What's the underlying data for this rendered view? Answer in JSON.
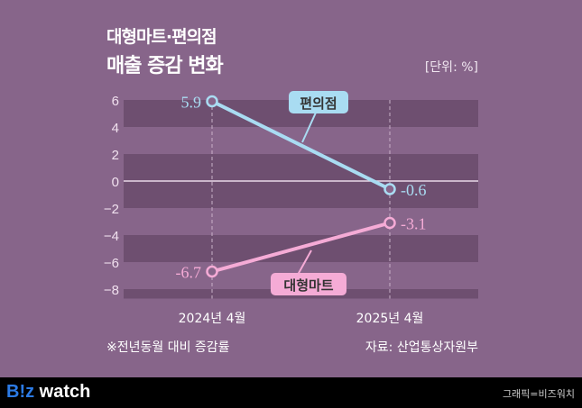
{
  "title_line1": "대형마트·편의점",
  "title_line2": "매출 증감 변화",
  "unit": "[단위: %]",
  "note": "※전년동월 대비 증감률",
  "source": "자료: 산업통상자원부",
  "footer": {
    "logo_brand": "B!z",
    "logo_word": "watch",
    "credit": "그래픽=비즈워치"
  },
  "colors": {
    "편의점": "#a9dcf2",
    "대형마트": "#f5abd6",
    "background": "#87658a",
    "band": "#6e4f70"
  },
  "chart_data": {
    "type": "line",
    "categories": [
      "2024년 4월",
      "2025년 4월"
    ],
    "series": [
      {
        "name": "편의점",
        "values": [
          5.9,
          -0.6
        ],
        "labels": [
          "5.9",
          "-0.6"
        ]
      },
      {
        "name": "대형마트",
        "values": [
          -6.7,
          -3.1
        ],
        "labels": [
          "-6.7",
          "-3.1"
        ]
      }
    ],
    "ylim": [
      -8.7,
      6
    ],
    "yticks": [
      6,
      4,
      2,
      0,
      -2,
      -4,
      -6,
      -8
    ],
    "ytick_labels": [
      "6",
      "4",
      "2",
      "0",
      "−2",
      "−4",
      "−6",
      "−8"
    ],
    "grid": "alternating bands"
  }
}
